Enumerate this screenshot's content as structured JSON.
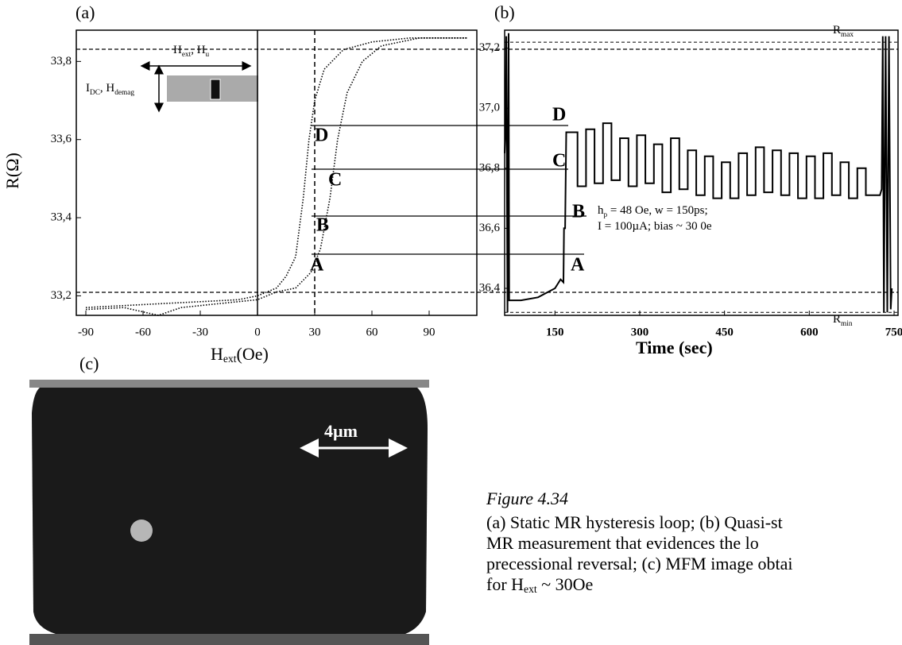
{
  "chart_data": [
    {
      "type": "line",
      "title": "(a)",
      "ylabel": [
        {
          "text": "R(Ω)"
        }
      ],
      "xlabel": [
        {
          "text": "H"
        },
        {
          "sub": "ext"
        },
        {
          "text": "(Oe)"
        }
      ],
      "xlim": [
        -95,
        115
      ],
      "ylim": [
        33.15,
        33.88
      ],
      "xticks": [
        -90,
        -60,
        -30,
        0,
        30,
        60,
        90
      ],
      "yticks": [
        {
          "value": 33.2,
          "label": "33,2"
        },
        {
          "value": 33.4,
          "label": "33,4"
        },
        {
          "value": 33.6,
          "label": "33,6"
        },
        {
          "value": 33.8,
          "label": "33,8"
        }
      ],
      "vlines": [
        {
          "value": 0,
          "style": "solid"
        },
        {
          "value": 30,
          "style": "dashed"
        }
      ],
      "series": [
        {
          "color": "#000000",
          "x": [
            -90,
            -70,
            -50,
            -30,
            -10,
            0,
            10,
            15,
            20,
            24,
            27,
            30,
            35,
            45,
            60,
            80,
            110
          ],
          "values": [
            33.17,
            33.175,
            33.18,
            33.185,
            33.19,
            33.2,
            33.22,
            33.25,
            33.3,
            33.45,
            33.6,
            33.7,
            33.78,
            33.83,
            33.85,
            33.86,
            33.86
          ]
        },
        {
          "color": "#000000",
          "x": [
            -90,
            -70,
            -52,
            -40,
            -20,
            0,
            10,
            20,
            28,
            33,
            38,
            42,
            47,
            55,
            65,
            85,
            110
          ],
          "values": [
            33.165,
            33.17,
            33.15,
            33.17,
            33.18,
            33.19,
            33.21,
            33.22,
            33.26,
            33.32,
            33.45,
            33.6,
            33.72,
            33.8,
            33.84,
            33.86,
            33.86
          ]
        }
      ],
      "annotations": [
        "D",
        "C",
        "B",
        "A"
      ],
      "inset_labels": [
        [
          {
            "text": "H"
          },
          {
            "sub": "ext"
          },
          {
            "text": ", H"
          },
          {
            "sub": "u"
          }
        ],
        [
          {
            "text": "I"
          },
          {
            "sub": "DC"
          },
          {
            "text": ", H"
          },
          {
            "sub": "demag"
          }
        ]
      ]
    },
    {
      "type": "line",
      "title": "(b)",
      "xlabel": [
        {
          "text": "Time (sec)"
        }
      ],
      "xlim": [
        61,
        757
      ],
      "ylim": [
        36.31,
        37.26
      ],
      "xticks": [
        150,
        300,
        450,
        600,
        750
      ],
      "yticks": [
        {
          "value": 36.4,
          "label": "36,4"
        },
        {
          "value": 36.6,
          "label": "36,6"
        },
        {
          "value": 36.8,
          "label": "36,8"
        },
        {
          "value": 37.0,
          "label": "37,0"
        },
        {
          "value": 37.2,
          "label": "37,2"
        }
      ],
      "hlines": [
        {
          "value": 37.22,
          "label": [
            {
              "text": "R"
            },
            {
              "sub": "max"
            }
          ]
        },
        {
          "value": 36.32,
          "label": [
            {
              "text": "R"
            },
            {
              "sub": "min"
            }
          ]
        }
      ],
      "series": [
        {
          "color": "#000000",
          "x": [
            61,
            62,
            64,
            66,
            68,
            69,
            90,
            120,
            150,
            160,
            165,
            166,
            168,
            170,
            175,
            190,
            190,
            205,
            205,
            220,
            220,
            235,
            235,
            250,
            250,
            265,
            265,
            280,
            280,
            295,
            295,
            310,
            310,
            325,
            325,
            340,
            340,
            355,
            355,
            370,
            370,
            385,
            385,
            400,
            400,
            415,
            415,
            430,
            430,
            445,
            445,
            460,
            460,
            475,
            475,
            490,
            490,
            505,
            505,
            520,
            520,
            535,
            535,
            550,
            550,
            565,
            565,
            580,
            580,
            595,
            595,
            610,
            610,
            625,
            625,
            640,
            640,
            655,
            655,
            670,
            670,
            685,
            685,
            700,
            700,
            725,
            728,
            730,
            732,
            735,
            738,
            741,
            744,
            746
          ],
          "values": [
            36.85,
            36.9,
            37.24,
            36.32,
            37.25,
            36.36,
            36.36,
            36.37,
            36.4,
            36.43,
            36.42,
            36.6,
            36.6,
            36.92,
            36.92,
            36.92,
            36.74,
            36.74,
            36.93,
            36.93,
            36.75,
            36.75,
            36.95,
            36.95,
            36.76,
            36.76,
            36.9,
            36.9,
            36.74,
            36.74,
            36.91,
            36.91,
            36.75,
            36.75,
            36.88,
            36.88,
            36.72,
            36.72,
            36.9,
            36.9,
            36.73,
            36.73,
            36.86,
            36.86,
            36.71,
            36.71,
            36.84,
            36.84,
            36.7,
            36.7,
            36.82,
            36.82,
            36.7,
            36.7,
            36.85,
            36.85,
            36.71,
            36.71,
            36.87,
            36.87,
            36.72,
            36.72,
            36.86,
            36.86,
            36.71,
            36.71,
            36.85,
            36.85,
            36.7,
            36.7,
            36.84,
            36.84,
            36.7,
            36.7,
            36.85,
            36.85,
            36.71,
            36.71,
            36.82,
            36.82,
            36.7,
            36.7,
            36.8,
            36.8,
            36.71,
            36.71,
            36.73,
            37.24,
            36.32,
            37.24,
            36.32,
            37.24,
            36.33,
            36.4
          ]
        }
      ],
      "annotations": [
        "D",
        "C",
        "B",
        "A"
      ],
      "notes": [
        [
          {
            "text": "h"
          },
          {
            "sub": "p"
          },
          {
            "text": " = 48 Oe, w = 150ps;"
          }
        ],
        [
          {
            "text": "I = 100µA; bias ~ 30 0e"
          }
        ]
      ]
    }
  ],
  "image": {
    "title": "(c)",
    "scale_label": "4µm"
  },
  "caption": {
    "title": "Figure 4.34",
    "lines": [
      [
        {
          "text": "(a) Static MR hysteresis loop; (b) Quasi-st"
        }
      ],
      [
        {
          "text": "MR measurement that evidences the lo"
        }
      ],
      [
        {
          "text": "precessional reversal; (c) MFM image obtai"
        }
      ],
      [
        {
          "text": "for H"
        },
        {
          "sub": "ext"
        },
        {
          "text": " ~ 30Oe"
        }
      ]
    ]
  }
}
